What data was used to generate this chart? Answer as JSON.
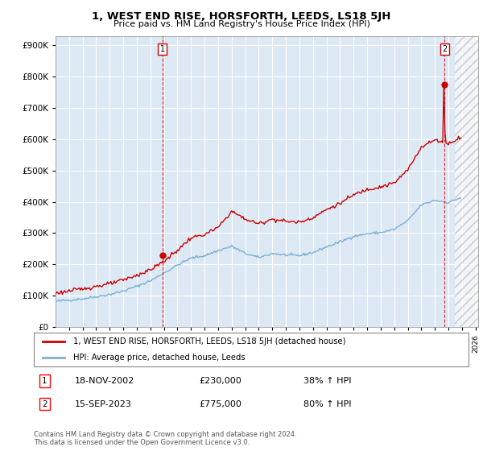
{
  "title": "1, WEST END RISE, HORSFORTH, LEEDS, LS18 5JH",
  "subtitle": "Price paid vs. HM Land Registry's House Price Index (HPI)",
  "background_color": "#ffffff",
  "plot_bg_color": "#dde8f5",
  "grid_color": "#aabccc",
  "sale1_date": "18-NOV-2002",
  "sale1_price": 230000,
  "sale1_hpi_pct": "38% ↑ HPI",
  "sale2_date": "15-SEP-2023",
  "sale2_price": 775000,
  "sale2_hpi_pct": "80% ↑ HPI",
  "legend_label_red": "1, WEST END RISE, HORSFORTH, LEEDS, LS18 5JH (detached house)",
  "legend_label_blue": "HPI: Average price, detached house, Leeds",
  "footer": "Contains HM Land Registry data © Crown copyright and database right 2024.\nThis data is licensed under the Open Government Licence v3.0.",
  "red_color": "#cc0000",
  "blue_color": "#7ab0d4",
  "ylim": [
    0,
    930000
  ],
  "yticks": [
    0,
    100000,
    200000,
    300000,
    400000,
    500000,
    600000,
    700000,
    800000,
    900000
  ],
  "xlim": [
    1995.0,
    2026.2
  ],
  "xticks": [
    1996,
    1997,
    1998,
    1999,
    2000,
    2001,
    2002,
    2003,
    2004,
    2005,
    2006,
    2007,
    2008,
    2009,
    2010,
    2011,
    2012,
    2013,
    2014,
    2015,
    2016,
    2017,
    2018,
    2019,
    2020,
    2021,
    2022,
    2023,
    2024,
    2025,
    2026
  ],
  "sale1_x": 2002.88,
  "sale2_x": 2023.71,
  "hatch_start": 2024.5
}
